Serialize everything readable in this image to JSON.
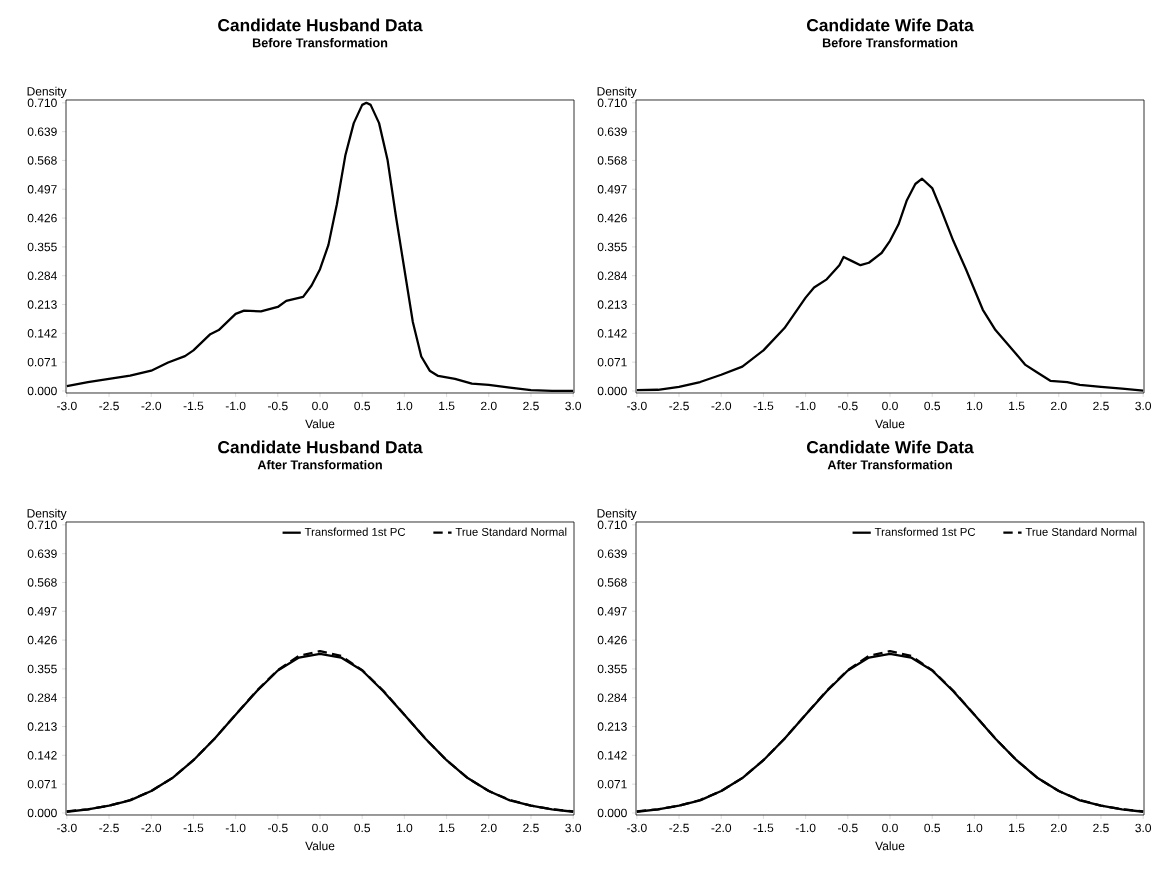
{
  "chart_data": [
    {
      "type": "line",
      "title": "Candidate Husband Data",
      "subtitle": "Before Transformation",
      "xlabel": "Value",
      "ylabel": "Density",
      "xlim": [
        -3.01,
        3.01
      ],
      "ylim": [
        -0.005,
        0.717
      ],
      "xticks": [
        {
          "value": -3,
          "label": "-3.0"
        },
        {
          "value": -2.5,
          "label": "-2.5"
        },
        {
          "value": -2,
          "label": "-2.0"
        },
        {
          "value": -1.5,
          "label": "-1.5"
        },
        {
          "value": -1,
          "label": "-1.0"
        },
        {
          "value": -0.5,
          "label": "-0.5"
        },
        {
          "value": 0,
          "label": "0.0"
        },
        {
          "value": 0.5,
          "label": "0.5"
        },
        {
          "value": 1,
          "label": "1.0"
        },
        {
          "value": 1.5,
          "label": "1.5"
        },
        {
          "value": 2,
          "label": "2.0"
        },
        {
          "value": 2.5,
          "label": "2.5"
        },
        {
          "value": 3,
          "label": "3.0"
        }
      ],
      "yticks": [
        {
          "value": 0,
          "label": "0.000"
        },
        {
          "value": 0.071,
          "label": "0.071"
        },
        {
          "value": 0.142,
          "label": "0.142"
        },
        {
          "value": 0.213,
          "label": "0.213"
        },
        {
          "value": 0.284,
          "label": "0.284"
        },
        {
          "value": 0.355,
          "label": "0.355"
        },
        {
          "value": 0.426,
          "label": "0.426"
        },
        {
          "value": 0.497,
          "label": "0.497"
        },
        {
          "value": 0.568,
          "label": "0.568"
        },
        {
          "value": 0.639,
          "label": "0.639"
        },
        {
          "value": 0.71,
          "label": "0.710"
        }
      ],
      "series": [
        {
          "color": "#000000",
          "line_style": "solid",
          "x": [
            -3.0,
            -2.75,
            -2.5,
            -2.25,
            -2.0,
            -1.8,
            -1.6,
            -1.5,
            -1.3,
            -1.2,
            -1.0,
            -0.9,
            -0.7,
            -0.5,
            -0.4,
            -0.2,
            -0.1,
            0.0,
            0.1,
            0.2,
            0.3,
            0.4,
            0.5,
            0.55,
            0.6,
            0.7,
            0.8,
            0.9,
            1.0,
            1.1,
            1.2,
            1.3,
            1.4,
            1.6,
            1.8,
            2.0,
            2.25,
            2.5,
            2.75,
            3.0
          ],
          "values": [
            0.012,
            0.022,
            0.03,
            0.038,
            0.05,
            0.07,
            0.086,
            0.1,
            0.14,
            0.15,
            0.19,
            0.198,
            0.196,
            0.207,
            0.222,
            0.232,
            0.26,
            0.3,
            0.36,
            0.46,
            0.58,
            0.66,
            0.705,
            0.71,
            0.705,
            0.66,
            0.57,
            0.43,
            0.3,
            0.17,
            0.085,
            0.05,
            0.037,
            0.03,
            0.018,
            0.015,
            0.008,
            0.002,
            0.0,
            0.0
          ]
        }
      ]
    },
    {
      "type": "line",
      "title": "Candidate Wife Data",
      "subtitle": "Before Transformation",
      "xlabel": "Value",
      "ylabel": "Density",
      "xlim": [
        -3.01,
        3.01
      ],
      "ylim": [
        -0.005,
        0.717
      ],
      "xticks": [
        {
          "value": -3,
          "label": "-3.0"
        },
        {
          "value": -2.5,
          "label": "-2.5"
        },
        {
          "value": -2,
          "label": "-2.0"
        },
        {
          "value": -1.5,
          "label": "-1.5"
        },
        {
          "value": -1,
          "label": "-1.0"
        },
        {
          "value": -0.5,
          "label": "-0.5"
        },
        {
          "value": 0,
          "label": "0.0"
        },
        {
          "value": 0.5,
          "label": "0.5"
        },
        {
          "value": 1,
          "label": "1.0"
        },
        {
          "value": 1.5,
          "label": "1.5"
        },
        {
          "value": 2,
          "label": "2.0"
        },
        {
          "value": 2.5,
          "label": "2.5"
        },
        {
          "value": 3,
          "label": "3.0"
        }
      ],
      "yticks": [
        {
          "value": 0,
          "label": "0.000"
        },
        {
          "value": 0.071,
          "label": "0.071"
        },
        {
          "value": 0.142,
          "label": "0.142"
        },
        {
          "value": 0.213,
          "label": "0.213"
        },
        {
          "value": 0.284,
          "label": "0.284"
        },
        {
          "value": 0.355,
          "label": "0.355"
        },
        {
          "value": 0.426,
          "label": "0.426"
        },
        {
          "value": 0.497,
          "label": "0.497"
        },
        {
          "value": 0.568,
          "label": "0.568"
        },
        {
          "value": 0.639,
          "label": "0.639"
        },
        {
          "value": 0.71,
          "label": "0.710"
        }
      ],
      "series": [
        {
          "color": "#000000",
          "line_style": "solid",
          "x": [
            -3.0,
            -2.75,
            -2.5,
            -2.25,
            -2.0,
            -1.75,
            -1.5,
            -1.25,
            -1.0,
            -0.9,
            -0.75,
            -0.6,
            -0.55,
            -0.45,
            -0.35,
            -0.25,
            -0.1,
            0.0,
            0.1,
            0.2,
            0.3,
            0.38,
            0.5,
            0.6,
            0.75,
            0.9,
            1.0,
            1.1,
            1.25,
            1.5,
            1.6,
            1.75,
            1.9,
            2.1,
            2.25,
            2.5,
            2.75,
            3.0
          ],
          "values": [
            0.002,
            0.003,
            0.01,
            0.022,
            0.04,
            0.06,
            0.1,
            0.155,
            0.23,
            0.255,
            0.275,
            0.31,
            0.33,
            0.32,
            0.31,
            0.316,
            0.34,
            0.37,
            0.41,
            0.47,
            0.51,
            0.523,
            0.5,
            0.45,
            0.37,
            0.3,
            0.25,
            0.2,
            0.15,
            0.09,
            0.065,
            0.045,
            0.025,
            0.022,
            0.015,
            0.01,
            0.006,
            0.001
          ]
        }
      ]
    },
    {
      "type": "line",
      "title": "Candidate Husband Data",
      "subtitle": "After Transformation",
      "xlabel": "Value",
      "ylabel": "Density",
      "xlim": [
        -3.01,
        3.01
      ],
      "ylim": [
        -0.005,
        0.717
      ],
      "xticks": [
        {
          "value": -3,
          "label": "-3.0"
        },
        {
          "value": -2.5,
          "label": "-2.5"
        },
        {
          "value": -2,
          "label": "-2.0"
        },
        {
          "value": -1.5,
          "label": "-1.5"
        },
        {
          "value": -1,
          "label": "-1.0"
        },
        {
          "value": -0.5,
          "label": "-0.5"
        },
        {
          "value": 0,
          "label": "0.0"
        },
        {
          "value": 0.5,
          "label": "0.5"
        },
        {
          "value": 1,
          "label": "1.0"
        },
        {
          "value": 1.5,
          "label": "1.5"
        },
        {
          "value": 2,
          "label": "2.0"
        },
        {
          "value": 2.5,
          "label": "2.5"
        },
        {
          "value": 3,
          "label": "3.0"
        }
      ],
      "yticks": [
        {
          "value": 0,
          "label": "0.000"
        },
        {
          "value": 0.071,
          "label": "0.071"
        },
        {
          "value": 0.142,
          "label": "0.142"
        },
        {
          "value": 0.213,
          "label": "0.213"
        },
        {
          "value": 0.284,
          "label": "0.284"
        },
        {
          "value": 0.355,
          "label": "0.355"
        },
        {
          "value": 0.426,
          "label": "0.426"
        },
        {
          "value": 0.497,
          "label": "0.497"
        },
        {
          "value": 0.568,
          "label": "0.568"
        },
        {
          "value": 0.639,
          "label": "0.639"
        },
        {
          "value": 0.71,
          "label": "0.710"
        }
      ],
      "legend": "top right",
      "series": [
        {
          "name": "Transformed 1st PC",
          "color": "#000000",
          "line_style": "solid",
          "x": [
            -3.0,
            -2.75,
            -2.5,
            -2.25,
            -2.0,
            -1.75,
            -1.5,
            -1.25,
            -1.0,
            -0.75,
            -0.5,
            -0.25,
            0.0,
            0.25,
            0.5,
            0.75,
            1.0,
            1.25,
            1.5,
            1.75,
            2.0,
            2.25,
            2.5,
            2.75,
            3.0
          ],
          "values": [
            0.003,
            0.009,
            0.018,
            0.031,
            0.054,
            0.086,
            0.13,
            0.183,
            0.242,
            0.3,
            0.351,
            0.383,
            0.392,
            0.383,
            0.351,
            0.3,
            0.242,
            0.183,
            0.13,
            0.086,
            0.054,
            0.031,
            0.018,
            0.009,
            0.003
          ]
        },
        {
          "name": "True Standard Normal",
          "color": "#000000",
          "line_style": "dashed",
          "x": [
            -3.0,
            -2.75,
            -2.5,
            -2.25,
            -2.0,
            -1.75,
            -1.5,
            -1.25,
            -1.0,
            -0.75,
            -0.5,
            -0.25,
            0.0,
            0.25,
            0.5,
            0.75,
            1.0,
            1.25,
            1.5,
            1.75,
            2.0,
            2.25,
            2.5,
            2.75,
            3.0
          ],
          "values": [
            0.004,
            0.009,
            0.018,
            0.032,
            0.054,
            0.086,
            0.13,
            0.183,
            0.242,
            0.301,
            0.352,
            0.387,
            0.399,
            0.387,
            0.352,
            0.301,
            0.242,
            0.183,
            0.13,
            0.086,
            0.054,
            0.032,
            0.018,
            0.009,
            0.004
          ]
        }
      ]
    },
    {
      "type": "line",
      "title": "Candidate Wife Data",
      "subtitle": "After Transformation",
      "xlabel": "Value",
      "ylabel": "Density",
      "xlim": [
        -3.01,
        3.01
      ],
      "ylim": [
        -0.005,
        0.717
      ],
      "xticks": [
        {
          "value": -3,
          "label": "-3.0"
        },
        {
          "value": -2.5,
          "label": "-2.5"
        },
        {
          "value": -2,
          "label": "-2.0"
        },
        {
          "value": -1.5,
          "label": "-1.5"
        },
        {
          "value": -1,
          "label": "-1.0"
        },
        {
          "value": -0.5,
          "label": "-0.5"
        },
        {
          "value": 0,
          "label": "0.0"
        },
        {
          "value": 0.5,
          "label": "0.5"
        },
        {
          "value": 1,
          "label": "1.0"
        },
        {
          "value": 1.5,
          "label": "1.5"
        },
        {
          "value": 2,
          "label": "2.0"
        },
        {
          "value": 2.5,
          "label": "2.5"
        },
        {
          "value": 3,
          "label": "3.0"
        }
      ],
      "yticks": [
        {
          "value": 0,
          "label": "0.000"
        },
        {
          "value": 0.071,
          "label": "0.071"
        },
        {
          "value": 0.142,
          "label": "0.142"
        },
        {
          "value": 0.213,
          "label": "0.213"
        },
        {
          "value": 0.284,
          "label": "0.284"
        },
        {
          "value": 0.355,
          "label": "0.355"
        },
        {
          "value": 0.426,
          "label": "0.426"
        },
        {
          "value": 0.497,
          "label": "0.497"
        },
        {
          "value": 0.568,
          "label": "0.568"
        },
        {
          "value": 0.639,
          "label": "0.639"
        },
        {
          "value": 0.71,
          "label": "0.710"
        }
      ],
      "legend": "top right",
      "series": [
        {
          "name": "Transformed 1st PC",
          "color": "#000000",
          "line_style": "solid",
          "x": [
            -3.0,
            -2.75,
            -2.5,
            -2.25,
            -2.0,
            -1.75,
            -1.5,
            -1.25,
            -1.0,
            -0.75,
            -0.5,
            -0.25,
            0.0,
            0.25,
            0.5,
            0.75,
            1.0,
            1.25,
            1.5,
            1.75,
            2.0,
            2.25,
            2.5,
            2.75,
            3.0
          ],
          "values": [
            0.003,
            0.009,
            0.018,
            0.031,
            0.054,
            0.086,
            0.13,
            0.183,
            0.242,
            0.3,
            0.351,
            0.383,
            0.392,
            0.383,
            0.351,
            0.3,
            0.242,
            0.183,
            0.13,
            0.086,
            0.054,
            0.031,
            0.018,
            0.009,
            0.003
          ]
        },
        {
          "name": "True Standard Normal",
          "color": "#000000",
          "line_style": "dashed",
          "x": [
            -3.0,
            -2.75,
            -2.5,
            -2.25,
            -2.0,
            -1.75,
            -1.5,
            -1.25,
            -1.0,
            -0.75,
            -0.5,
            -0.25,
            0.0,
            0.25,
            0.5,
            0.75,
            1.0,
            1.25,
            1.5,
            1.75,
            2.0,
            2.25,
            2.5,
            2.75,
            3.0
          ],
          "values": [
            0.004,
            0.009,
            0.018,
            0.032,
            0.054,
            0.086,
            0.13,
            0.183,
            0.242,
            0.301,
            0.352,
            0.387,
            0.399,
            0.387,
            0.352,
            0.301,
            0.242,
            0.183,
            0.13,
            0.086,
            0.054,
            0.032,
            0.018,
            0.009,
            0.004
          ]
        }
      ]
    }
  ]
}
